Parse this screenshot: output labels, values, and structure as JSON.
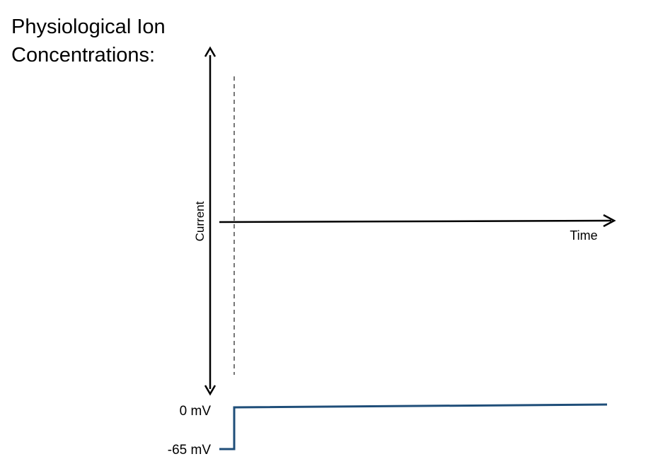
{
  "title": {
    "line1": "Physiological Ion",
    "line2": "Concentrations:"
  },
  "current_plot": {
    "y_axis_label": "Current",
    "x_axis_label": "Time"
  },
  "voltage_protocol": {
    "high_label": "0 mV",
    "low_label": "-65 mV",
    "trace_color": "#1f4e79"
  },
  "colors": {
    "axis": "#000000",
    "marker_line": "#555555"
  }
}
